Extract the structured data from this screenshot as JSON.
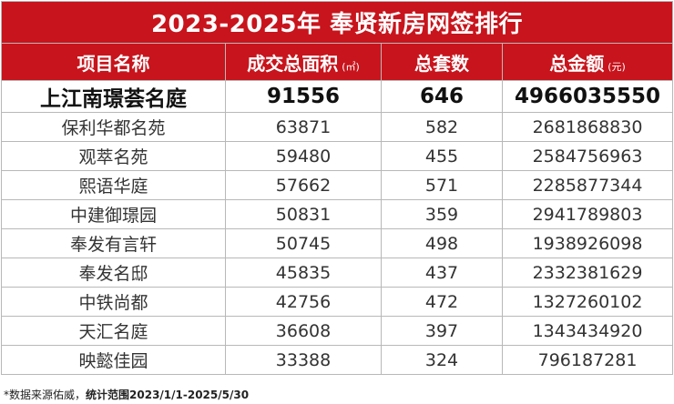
{
  "title": "2023-2025年 奉贤新房网签排行",
  "headers": {
    "name": "项目名称",
    "area": "成交总面积",
    "area_unit": "(㎡)",
    "units": "总套数",
    "amount": "总金额",
    "amount_unit": "(元)"
  },
  "rows": [
    {
      "name": "上江南璟荟名庭",
      "area": "91556",
      "units": "646",
      "amount": "4966035550"
    },
    {
      "name": "保利华都名苑",
      "area": "63871",
      "units": "582",
      "amount": "2681868830"
    },
    {
      "name": "观萃名苑",
      "area": "59480",
      "units": "455",
      "amount": "2584756963"
    },
    {
      "name": "熙语华庭",
      "area": "57662",
      "units": "571",
      "amount": "2285877344"
    },
    {
      "name": "中建御璟园",
      "area": "50831",
      "units": "359",
      "amount": "2941789803"
    },
    {
      "name": "奉发有言轩",
      "area": "50745",
      "units": "498",
      "amount": "1938926098"
    },
    {
      "name": "奉发名邸",
      "area": "45835",
      "units": "437",
      "amount": "2332381629"
    },
    {
      "name": "中铁尚都",
      "area": "42756",
      "units": "472",
      "amount": "1327260102"
    },
    {
      "name": "天汇名庭",
      "area": "36608",
      "units": "397",
      "amount": "1343434920"
    },
    {
      "name": "映懿佳园",
      "area": "33388",
      "units": "324",
      "amount": "796187281"
    }
  ],
  "footnote": {
    "source": "*数据来源佑威，",
    "range": "统计范围2023/1/1-2025/5/30"
  },
  "colors": {
    "header_bg": "#c8141c",
    "header_text": "#ffffff"
  }
}
